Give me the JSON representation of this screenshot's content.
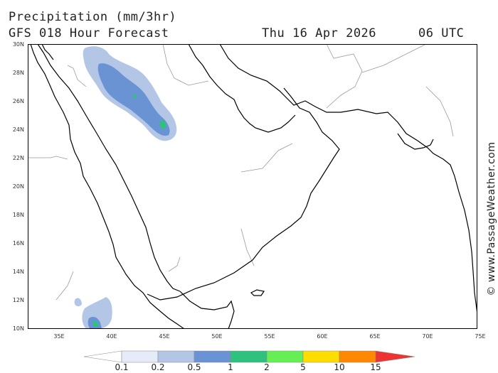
{
  "header": {
    "title": "Precipitation (mm/3hr)",
    "subtitle": "GFS 018 Hour Forecast",
    "datetime": "Thu 16 Apr 2026",
    "utc": "06 UTC"
  },
  "credit": "© www.PassageWeather.com",
  "axes": {
    "lat_labels": [
      "30N",
      "28N",
      "26N",
      "24N",
      "22N",
      "20N",
      "18N",
      "16N",
      "14N",
      "12N",
      "10N"
    ],
    "lon_labels": [
      "35E",
      "40E",
      "45E",
      "50E",
      "55E",
      "60E",
      "65E",
      "70E",
      "75E"
    ]
  },
  "legend": {
    "labels": [
      "0.1",
      "0.2",
      "0.5",
      "1",
      "2",
      "5",
      "10",
      "15"
    ],
    "colors": [
      "#ffffff",
      "#e6ecf7",
      "#b3c6e6",
      "#6a93d4",
      "#2fc27f",
      "#66ee55",
      "#ffdd00",
      "#ff8800",
      "#ee3333"
    ]
  },
  "colors": {
    "coast": "#000000",
    "border": "#9a9a9a",
    "light_precip": "#b3c6e6",
    "mid_precip": "#6a93d4",
    "heavy_precip": "#2fc27f"
  }
}
